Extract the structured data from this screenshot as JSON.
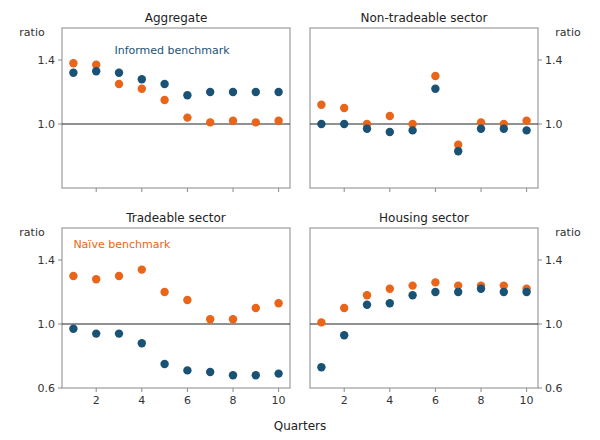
{
  "chart_data": [
    {
      "type": "scatter",
      "title": "Aggregate",
      "ylabel": "ratio",
      "x": [
        1,
        2,
        3,
        4,
        5,
        6,
        7,
        8,
        9,
        10
      ],
      "series": [
        {
          "color": "#e8651a",
          "values": [
            1.38,
            1.37,
            1.25,
            1.22,
            1.15,
            1.04,
            1.01,
            1.02,
            1.01,
            1.02
          ]
        },
        {
          "color": "#1a5276",
          "values": [
            1.32,
            1.33,
            1.32,
            1.28,
            1.25,
            1.18,
            1.2,
            1.2,
            1.2,
            1.2
          ]
        }
      ],
      "xlim": [
        0.5,
        10.5
      ],
      "xticks": [
        2,
        4,
        6,
        8,
        10
      ],
      "ylim": [
        0.6,
        1.6
      ],
      "yticks": [
        {
          "value": 1.0,
          "label": "1.0"
        },
        1.4
      ],
      "hline": 1.0,
      "tick_labels": "y",
      "annotations": [
        {
          "text": "Informed benchmark",
          "x": 2.8,
          "y": 1.46,
          "color": "#1a5276"
        }
      ]
    },
    {
      "type": "scatter",
      "title": "Non-tradeable sector",
      "ylabel": "ratio",
      "x": [
        1,
        2,
        3,
        4,
        5,
        6,
        7,
        8,
        9,
        10
      ],
      "series": [
        {
          "color": "#e8651a",
          "values": [
            1.12,
            1.1,
            1.0,
            1.05,
            1.0,
            1.3,
            0.87,
            1.01,
            1.0,
            1.02
          ]
        },
        {
          "color": "#1a5276",
          "values": [
            1.0,
            1.0,
            0.97,
            0.95,
            0.96,
            1.22,
            0.83,
            0.97,
            0.97,
            0.96
          ]
        }
      ],
      "xlim": [
        0.5,
        10.5
      ],
      "xticks": [
        2,
        4,
        6,
        8,
        10
      ],
      "ylim": [
        0.6,
        1.6
      ],
      "yticks": [
        {
          "value": 1.0,
          "label": "1.0"
        },
        1.4
      ],
      "hline": 1.0,
      "tick_labels": "y"
    },
    {
      "type": "scatter",
      "title": "Tradeable sector",
      "ylabel": "ratio",
      "xlabel": "Quarters",
      "x": [
        1,
        2,
        3,
        4,
        5,
        6,
        7,
        8,
        9,
        10
      ],
      "series": [
        {
          "color": "#e8651a",
          "values": [
            1.3,
            1.28,
            1.3,
            1.34,
            1.2,
            1.15,
            1.03,
            1.03,
            1.1,
            1.13
          ]
        },
        {
          "color": "#1a5276",
          "values": [
            0.97,
            0.94,
            0.94,
            0.88,
            0.75,
            0.71,
            0.7,
            0.68,
            0.68,
            0.69
          ]
        }
      ],
      "xlim": [
        0.5,
        10.5
      ],
      "xticks": [
        2,
        4,
        6,
        8,
        10
      ],
      "ylim": [
        0.6,
        1.6
      ],
      "yticks": [
        0.6,
        {
          "value": 1.0,
          "label": "1.0"
        },
        1.4
      ],
      "hline": 1.0,
      "annotations": [
        {
          "text": "Naïve benchmark",
          "x": 1.0,
          "y": 1.5,
          "color": "#e8651a"
        }
      ]
    },
    {
      "type": "scatter",
      "title": "Housing sector",
      "ylabel": "ratio",
      "x": [
        1,
        2,
        3,
        4,
        5,
        6,
        7,
        8,
        9,
        10
      ],
      "series": [
        {
          "color": "#e8651a",
          "values": [
            1.01,
            1.1,
            1.18,
            1.22,
            1.24,
            1.26,
            1.24,
            1.24,
            1.24,
            1.22
          ]
        },
        {
          "color": "#1a5276",
          "values": [
            0.73,
            0.93,
            1.12,
            1.13,
            1.18,
            1.2,
            1.2,
            1.22,
            1.2,
            1.2
          ]
        }
      ],
      "xlim": [
        0.5,
        10.5
      ],
      "xticks": [
        2,
        4,
        6,
        8,
        10
      ],
      "ylim": [
        0.6,
        1.6
      ],
      "yticks": [
        0.6,
        {
          "value": 1.0,
          "label": "1.0"
        },
        1.4
      ],
      "hline": 1.0
    }
  ]
}
